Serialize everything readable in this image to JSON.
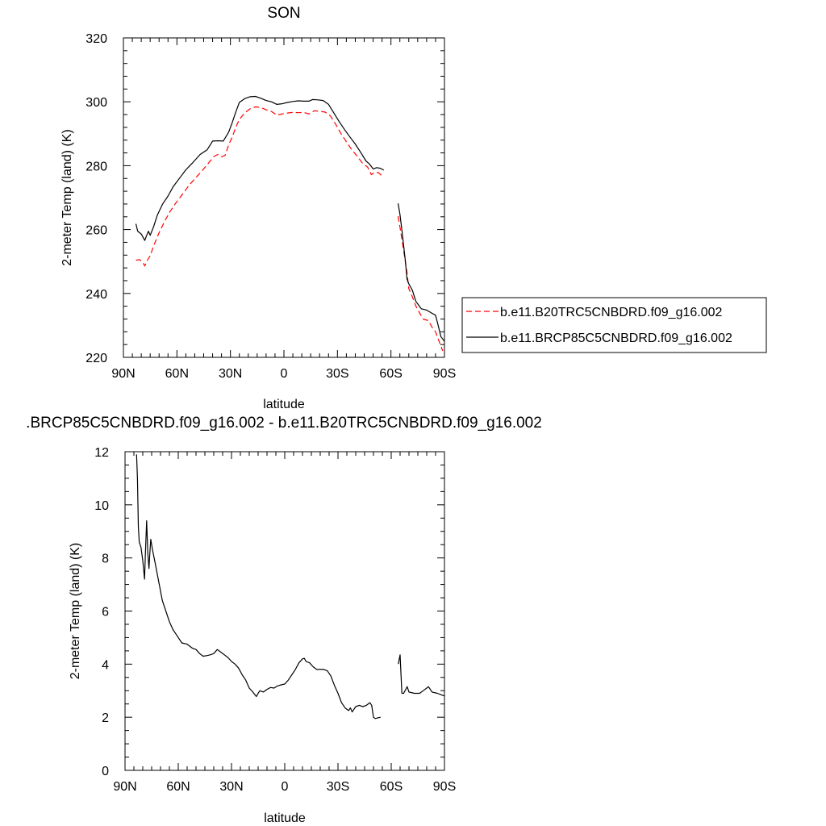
{
  "chart_data": [
    {
      "type": "line",
      "title": "SON",
      "xlabel": "latitude",
      "ylabel": "2-meter Temp (land) (K)",
      "xlim": [
        90,
        -90
      ],
      "ylim": [
        220,
        320
      ],
      "x_ticks": [
        90,
        60,
        30,
        0,
        -30,
        -60,
        -90
      ],
      "x_tick_labels": [
        "90N",
        "60N",
        "30N",
        "0",
        "30S",
        "60S",
        "90S"
      ],
      "y_ticks": [
        220,
        240,
        260,
        280,
        300,
        320
      ],
      "y_tick_labels": [
        "220",
        "240",
        "260",
        "280",
        "300",
        "320"
      ],
      "legend_position": "right",
      "series": [
        {
          "name": "b.e11.B20TRC5CNBDRD.f09_g16.002",
          "color": "#ff0000",
          "dash": "dashed",
          "segments": [
            [
              [
                83,
                250.4
              ],
              [
                81,
                250.6
              ],
              [
                79,
                249.6
              ],
              [
                78,
                248.6
              ],
              [
                77,
                250
              ],
              [
                75,
                251.8
              ],
              [
                73,
                255
              ],
              [
                70,
                259
              ],
              [
                67,
                262.5
              ],
              [
                64,
                265.5
              ],
              [
                61,
                268
              ],
              [
                57,
                271
              ],
              [
                53,
                274
              ],
              [
                49,
                276.5
              ],
              [
                45,
                279
              ],
              [
                42,
                281
              ],
              [
                39,
                283
              ],
              [
                37,
                283.5
              ],
              [
                35,
                282.8
              ],
              [
                33,
                283.2
              ],
              [
                31,
                286.5
              ],
              [
                29,
                289
              ],
              [
                27,
                292
              ],
              [
                25,
                294.5
              ],
              [
                22,
                296.5
              ],
              [
                19,
                297.8
              ],
              [
                16,
                298.4
              ],
              [
                13,
                298.2
              ],
              [
                10,
                297.5
              ],
              [
                7,
                297
              ],
              [
                4,
                295.8
              ],
              [
                1,
                296.2
              ],
              [
                -2,
                296.5
              ],
              [
                -5,
                296.7
              ],
              [
                -8,
                296.6
              ],
              [
                -11,
                296.7
              ],
              [
                -14,
                296.2
              ],
              [
                -17,
                297.2
              ],
              [
                -20,
                297
              ],
              [
                -23,
                296.8
              ],
              [
                -26,
                295.6
              ],
              [
                -29,
                293
              ],
              [
                -32,
                290
              ],
              [
                -35,
                287.5
              ],
              [
                -38,
                285
              ],
              [
                -41,
                283
              ],
              [
                -44,
                280.8
              ],
              [
                -47,
                279.5
              ],
              [
                -49,
                277.2
              ],
              [
                -51,
                278
              ],
              [
                -53,
                277.8
              ],
              [
                -55,
                276.8
              ]
            ],
            [
              [
                -64,
                264.2
              ],
              [
                -65,
                261
              ],
              [
                -67,
                254
              ],
              [
                -69,
                246.5
              ],
              [
                -70,
                241.5
              ],
              [
                -72,
                239
              ],
              [
                -74,
                236
              ],
              [
                -76,
                234
              ],
              [
                -78,
                232
              ],
              [
                -81,
                231.5
              ],
              [
                -83,
                229.5
              ],
              [
                -85,
                228
              ],
              [
                -87,
                225
              ],
              [
                -89,
                222
              ]
            ]
          ]
        },
        {
          "name": "b.e11.BRCP85C5CNBDRD.f09_g16.002",
          "color": "#000000",
          "dash": "solid",
          "segments": [
            [
              [
                83,
                261.8
              ],
              [
                82,
                259.5
              ],
              [
                80,
                258.6
              ],
              [
                78,
                256.6
              ],
              [
                77,
                258.1
              ],
              [
                76,
                259.5
              ],
              [
                75,
                258.2
              ],
              [
                73,
                261
              ],
              [
                71,
                264.5
              ],
              [
                68,
                268
              ],
              [
                65,
                270.5
              ],
              [
                62,
                273.5
              ],
              [
                58,
                276.5
              ],
              [
                55,
                278.7
              ],
              [
                51,
                281
              ],
              [
                47,
                283.5
              ],
              [
                43,
                285
              ],
              [
                40,
                287.7
              ],
              [
                37,
                287.8
              ],
              [
                34,
                287.7
              ],
              [
                31,
                290.5
              ],
              [
                29,
                293.5
              ],
              [
                27,
                296.8
              ],
              [
                25,
                299.8
              ],
              [
                22,
                301
              ],
              [
                19,
                301.6
              ],
              [
                16,
                301.7
              ],
              [
                13,
                301.1
              ],
              [
                10,
                300.4
              ],
              [
                7,
                300
              ],
              [
                4,
                299.2
              ],
              [
                1,
                299.4
              ],
              [
                -2,
                299.8
              ],
              [
                -5,
                300.1
              ],
              [
                -8,
                300.3
              ],
              [
                -11,
                300.2
              ],
              [
                -14,
                300.2
              ],
              [
                -16,
                300.7
              ],
              [
                -19,
                300.6
              ],
              [
                -22,
                300.4
              ],
              [
                -25,
                299.2
              ],
              [
                -28,
                296.5
              ],
              [
                -31,
                293.8
              ],
              [
                -34,
                291.3
              ],
              [
                -37,
                289
              ],
              [
                -40,
                286.8
              ],
              [
                -43,
                284.2
              ],
              [
                -46,
                281.5
              ],
              [
                -48,
                280.5
              ],
              [
                -50,
                279
              ],
              [
                -52,
                279.4
              ],
              [
                -54,
                279.2
              ],
              [
                -56,
                278.6
              ]
            ],
            [
              [
                -64,
                268.2
              ],
              [
                -65,
                265
              ],
              [
                -66,
                260.5
              ],
              [
                -68,
                250.5
              ],
              [
                -69,
                244.5
              ],
              [
                -70,
                243
              ],
              [
                -72,
                241
              ],
              [
                -74,
                237.5
              ],
              [
                -77,
                235.2
              ],
              [
                -80,
                234.8
              ],
              [
                -83,
                233.8
              ],
              [
                -85,
                233.2
              ],
              [
                -86,
                231
              ],
              [
                -88,
                226.5
              ],
              [
                -90,
                225
              ]
            ]
          ]
        }
      ]
    },
    {
      "type": "line",
      "title": ".BRCP85C5CNBDRD.f09_g16.002 - b.e11.B20TRC5CNBDRD.f09_g16.002",
      "xlabel": "latitude",
      "ylabel": "2-meter Temp (land) (K)",
      "xlim": [
        90,
        -90
      ],
      "ylim": [
        0,
        12
      ],
      "x_ticks": [
        90,
        60,
        30,
        0,
        -30,
        -60,
        -90
      ],
      "x_tick_labels": [
        "90N",
        "60N",
        "30N",
        "0",
        "30S",
        "60S",
        "90S"
      ],
      "y_ticks": [
        0,
        2,
        4,
        6,
        8,
        10,
        12
      ],
      "y_tick_labels": [
        "0",
        "2",
        "4",
        "6",
        "8",
        "10",
        "12"
      ],
      "series": [
        {
          "color": "#000000",
          "dash": "solid",
          "segments": [
            [
              [
                83.5,
                11.9
              ],
              [
                83,
                11
              ],
              [
                82.5,
                9.2
              ],
              [
                82,
                8.6
              ],
              [
                81,
                8.4
              ],
              [
                80,
                7.9
              ],
              [
                79,
                7.2
              ],
              [
                78.5,
                8.2
              ],
              [
                77.8,
                9.4
              ],
              [
                77.2,
                8.2
              ],
              [
                76.5,
                7.6
              ],
              [
                76,
                8.2
              ],
              [
                75.5,
                8.7
              ],
              [
                74.5,
                8.3
              ],
              [
                73,
                7.8
              ],
              [
                71,
                7.1
              ],
              [
                69,
                6.4
              ],
              [
                67,
                6.0
              ],
              [
                65,
                5.6
              ],
              [
                63,
                5.3
              ],
              [
                61,
                5.1
              ],
              [
                58,
                4.8
              ],
              [
                55,
                4.75
              ],
              [
                52,
                4.6
              ],
              [
                50,
                4.55
              ],
              [
                48,
                4.4
              ],
              [
                46,
                4.3
              ],
              [
                44,
                4.32
              ],
              [
                42,
                4.35
              ],
              [
                40,
                4.4
              ],
              [
                38,
                4.55
              ],
              [
                36,
                4.45
              ],
              [
                34,
                4.35
              ],
              [
                32,
                4.25
              ],
              [
                30,
                4.1
              ],
              [
                28,
                4.0
              ],
              [
                26,
                3.85
              ],
              [
                24,
                3.6
              ],
              [
                22,
                3.4
              ],
              [
                20,
                3.1
              ],
              [
                18,
                2.95
              ],
              [
                16,
                2.78
              ],
              [
                15,
                2.9
              ],
              [
                14,
                3.0
              ],
              [
                12,
                2.95
              ],
              [
                10,
                3.05
              ],
              [
                8,
                3.12
              ],
              [
                6,
                3.1
              ],
              [
                4,
                3.18
              ],
              [
                2,
                3.22
              ],
              [
                0,
                3.25
              ],
              [
                -2,
                3.4
              ],
              [
                -4,
                3.6
              ],
              [
                -6,
                3.8
              ],
              [
                -8,
                4.05
              ],
              [
                -10,
                4.2
              ],
              [
                -11,
                4.22
              ],
              [
                -12,
                4.1
              ],
              [
                -14,
                4.05
              ],
              [
                -16,
                3.9
              ],
              [
                -18,
                3.8
              ],
              [
                -20,
                3.8
              ],
              [
                -22,
                3.8
              ],
              [
                -24,
                3.75
              ],
              [
                -26,
                3.55
              ],
              [
                -28,
                3.2
              ],
              [
                -30,
                2.9
              ],
              [
                -32,
                2.55
              ],
              [
                -34,
                2.35
              ],
              [
                -36,
                2.25
              ],
              [
                -37,
                2.35
              ],
              [
                -38,
                2.2
              ],
              [
                -40,
                2.4
              ],
              [
                -42,
                2.45
              ],
              [
                -44,
                2.4
              ],
              [
                -46,
                2.45
              ],
              [
                -48,
                2.55
              ],
              [
                -49,
                2.45
              ],
              [
                -50,
                2.0
              ],
              [
                -51,
                1.95
              ],
              [
                -52,
                1.97
              ],
              [
                -54,
                2.0
              ]
            ],
            [
              [
                -64,
                4.0
              ],
              [
                -65,
                4.35
              ],
              [
                -66,
                2.9
              ],
              [
                -67,
                2.9
              ],
              [
                -69,
                3.15
              ],
              [
                -70,
                2.95
              ],
              [
                -73,
                2.9
              ],
              [
                -76,
                2.9
              ],
              [
                -78,
                3.0
              ],
              [
                -80,
                3.1
              ],
              [
                -81,
                3.15
              ],
              [
                -83,
                2.95
              ],
              [
                -86,
                2.9
              ],
              [
                -88,
                2.85
              ],
              [
                -90,
                2.8
              ]
            ]
          ]
        }
      ]
    }
  ]
}
